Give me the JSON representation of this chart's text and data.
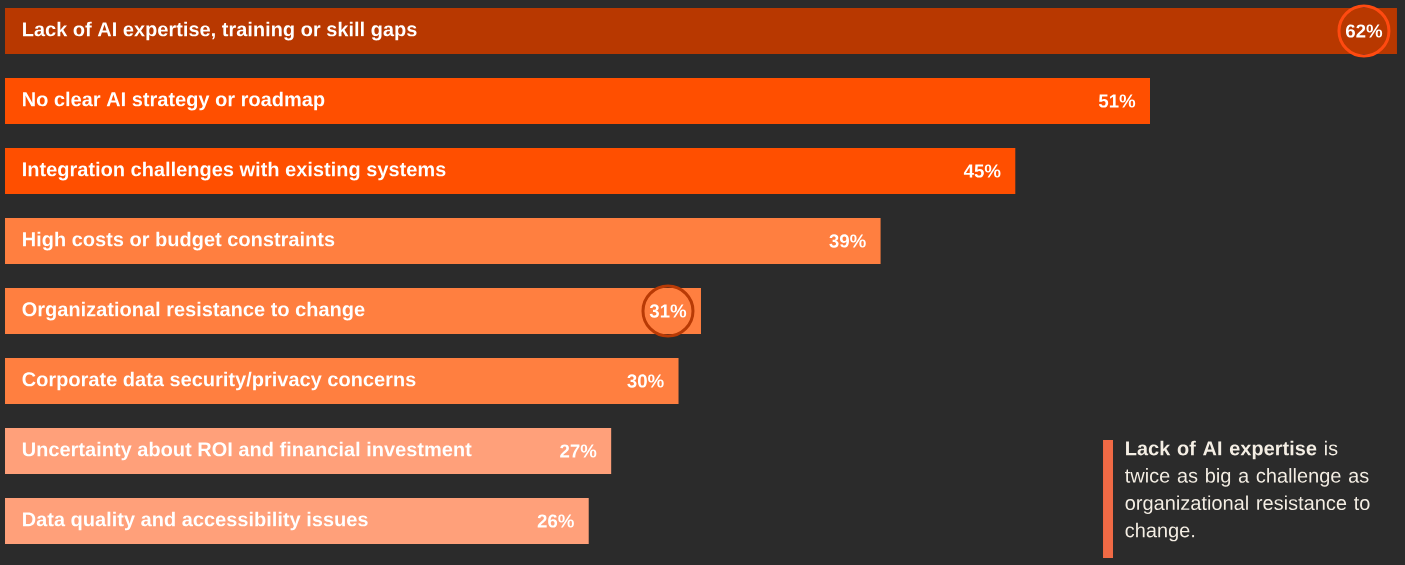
{
  "chart_data": {
    "type": "bar",
    "orientation": "horizontal",
    "categories": [
      "Lack of AI expertise, training or skill gaps",
      "No clear AI strategy or roadmap",
      "Integration challenges with existing systems",
      "High costs or budget constraints",
      "Organizational resistance to change",
      "Corporate data security/privacy concerns",
      "Uncertainty about ROI and financial investment",
      "Data quality and accessibility issues"
    ],
    "values": [
      62,
      51,
      45,
      39,
      31,
      30,
      27,
      26
    ],
    "colors": [
      "#b83800",
      "#ff4f00",
      "#ff4f00",
      "#ff7f40",
      "#ff7f40",
      "#ff7f40",
      "#ffa07a",
      "#ffa07a"
    ],
    "value_labels": [
      "62%",
      "51%",
      "45%",
      "39%",
      "31%",
      "30%",
      "27%",
      "26%"
    ],
    "annotations": [
      "**Lack of AI expertise** is twice as big a challenge as organizational resistance to change."
    ]
  }
}
